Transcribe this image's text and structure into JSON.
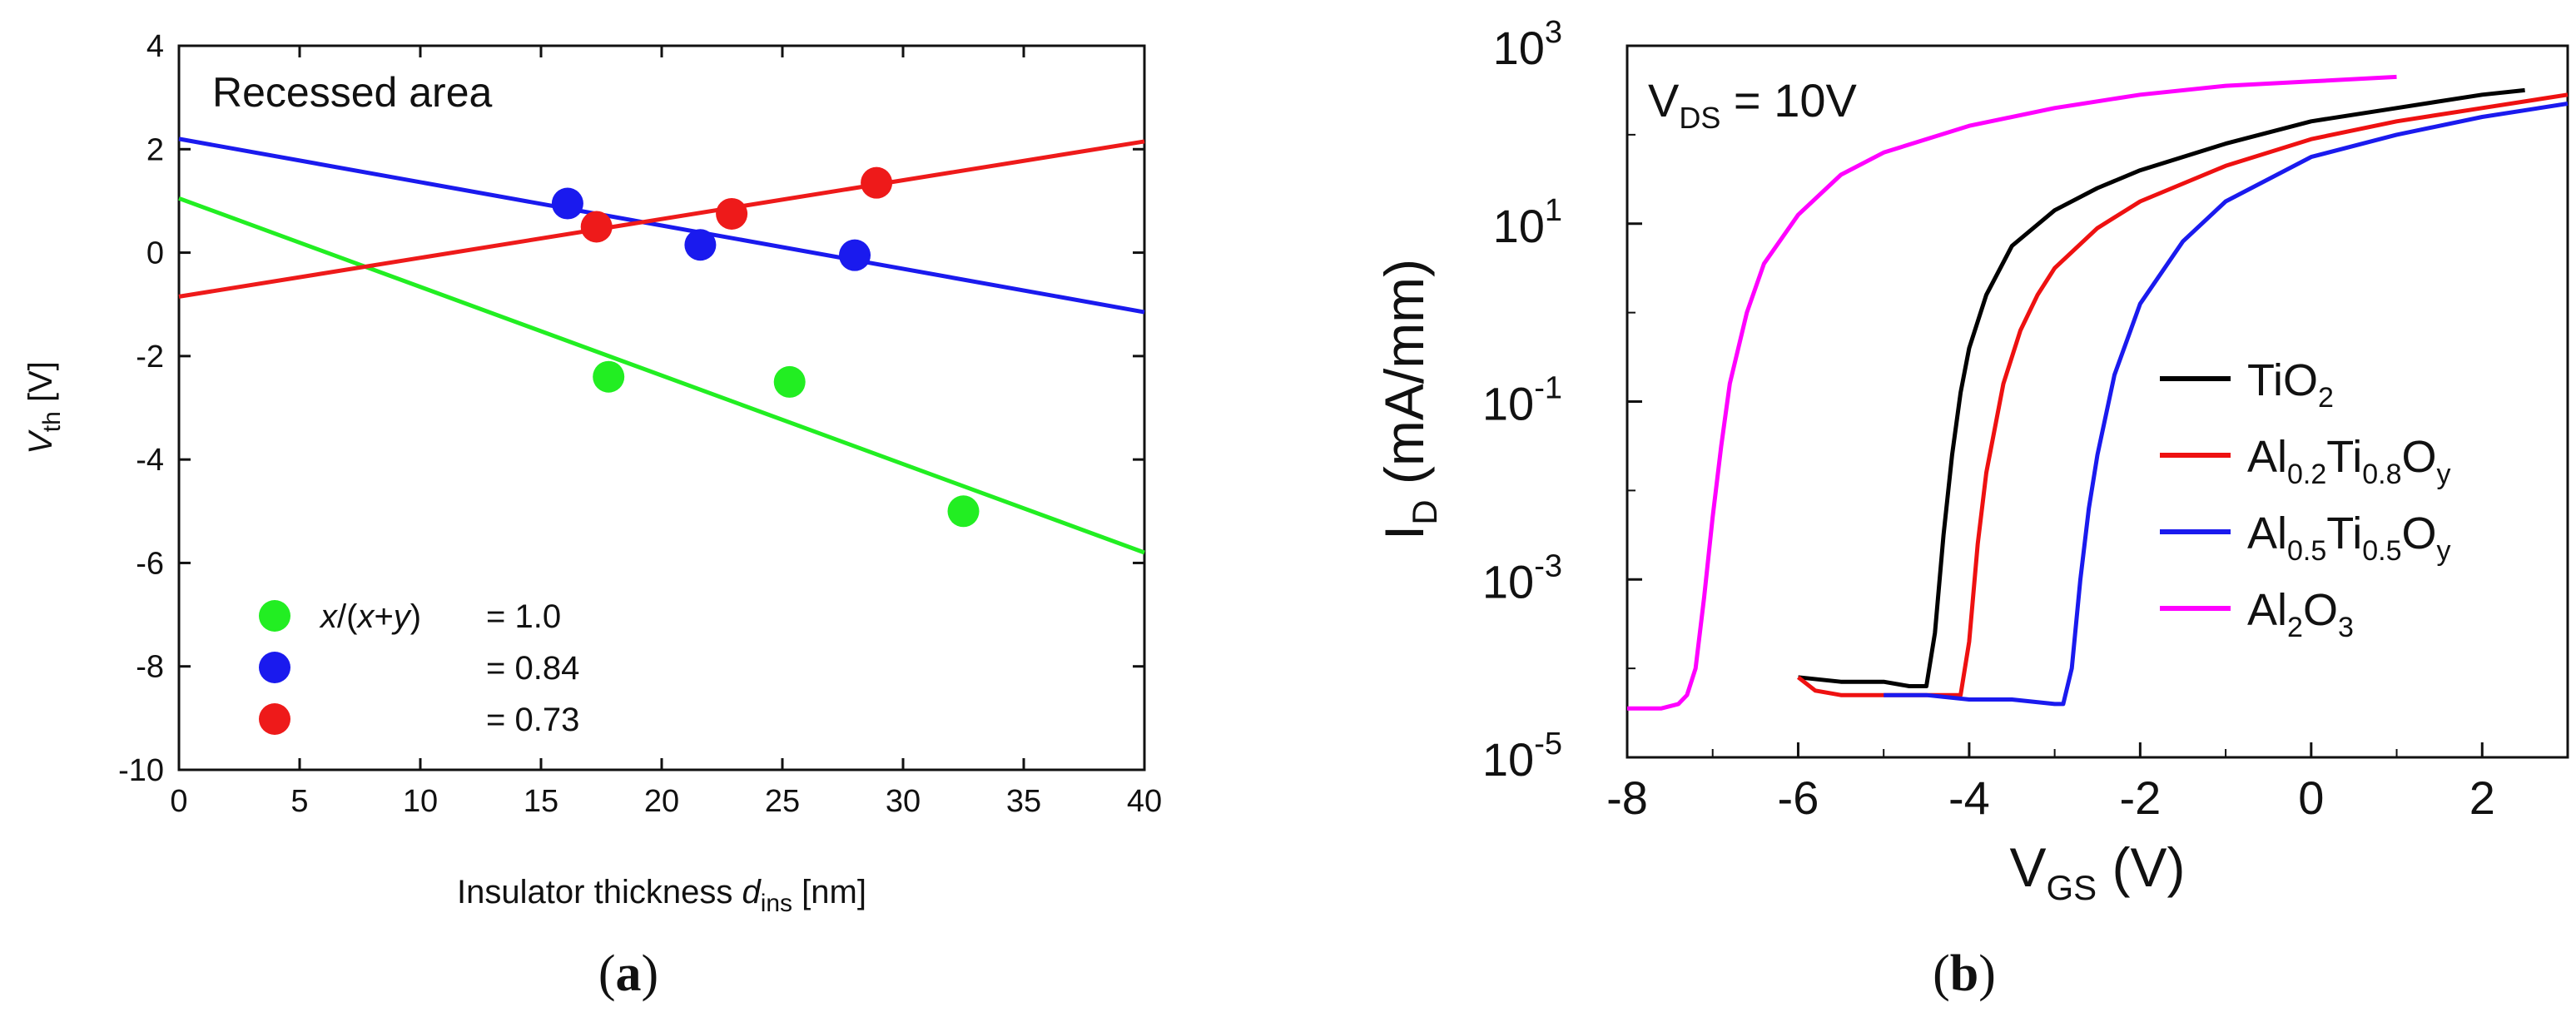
{
  "chart_data": [
    {
      "panel": "a",
      "type": "scatter",
      "title": "Recessed area",
      "xlabel": {
        "main": "Insulator thickness ",
        "italic": "d",
        "sub": "ins",
        "unit": " [nm]"
      },
      "ylabel": {
        "italic": "V",
        "sub": "th",
        "unit": " [V]"
      },
      "xlim": [
        0,
        40
      ],
      "ylim": [
        -10,
        4
      ],
      "xticks": [
        "0",
        "5",
        "10",
        "15",
        "20",
        "25",
        "30",
        "35",
        "40"
      ],
      "yticks": [
        "-10",
        "-8",
        "-6",
        "-4",
        "-2",
        "0",
        "2",
        "4"
      ],
      "legend_placement": "bottom-left",
      "series": [
        {
          "name": "x/(x+y) = 1.0",
          "legend_label": "= 1.0",
          "color": "#22ee22",
          "points": [
            [
              17.8,
              -2.4
            ],
            [
              25.3,
              -2.5
            ],
            [
              32.5,
              -5.0
            ]
          ],
          "fit": [
            [
              0,
              1.05
            ],
            [
              40,
              -5.8
            ]
          ]
        },
        {
          "name": "x/(x+y) = 0.84",
          "legend_label": "= 0.84",
          "color": "#1a1aee",
          "points": [
            [
              16.1,
              0.95
            ],
            [
              21.6,
              0.15
            ],
            [
              28.0,
              -0.05
            ]
          ],
          "fit": [
            [
              0,
              2.2
            ],
            [
              40,
              -1.15
            ]
          ]
        },
        {
          "name": "x/(x+y) = 0.73",
          "legend_label": "= 0.73",
          "color": "#ee1a1a",
          "points": [
            [
              17.3,
              0.5
            ],
            [
              22.9,
              0.75
            ],
            [
              28.9,
              1.35
            ]
          ],
          "fit": [
            [
              0,
              -0.85
            ],
            [
              40,
              2.15
            ]
          ]
        }
      ],
      "legend_prefix": {
        "italic_x": "x",
        "mid": "/(",
        "italic_x2": "x",
        "plus": "+",
        "italic_y": "y",
        "close": ")"
      }
    },
    {
      "panel": "b",
      "type": "line",
      "annotation": {
        "main": "V",
        "sub": "DS",
        "rest": " = 10V"
      },
      "xlabel": {
        "main": "V",
        "sub": "GS",
        "unit": " (V)"
      },
      "ylabel": {
        "main": "I",
        "sub": "D",
        "unit": " (mA/mm)"
      },
      "y_scale": "log",
      "xlim": [
        -8,
        3
      ],
      "ylim_log10": [
        -5,
        3
      ],
      "xticks": [
        "-8",
        "-6",
        "-4",
        "-2",
        "0",
        "2"
      ],
      "xtick_values": [
        -8,
        -6,
        -4,
        -2,
        0,
        2
      ],
      "yticks": [
        {
          "base": "10",
          "exp": "-5",
          "log": -5
        },
        {
          "base": "10",
          "exp": "-3",
          "log": -3
        },
        {
          "base": "10",
          "exp": "-1",
          "log": -1
        },
        {
          "base": "10",
          "exp": "1",
          "log": 1
        },
        {
          "base": "10",
          "exp": "3",
          "log": 3
        }
      ],
      "legend_placement": "bottom-right",
      "series": [
        {
          "legend": [
            {
              "t": "TiO"
            },
            {
              "t": "2",
              "s": 1
            }
          ],
          "color": "#000000",
          "x": [
            -6.0,
            -5.5,
            -5.0,
            -4.7,
            -4.5,
            -4.4,
            -4.3,
            -4.2,
            -4.1,
            -4.0,
            -3.8,
            -3.5,
            -3.0,
            -2.5,
            -2.0,
            -1.0,
            0.0,
            1.0,
            2.0,
            2.5
          ],
          "log10_y": [
            -4.1,
            -4.15,
            -4.15,
            -4.2,
            -4.2,
            -3.6,
            -2.5,
            -1.6,
            -0.9,
            -0.4,
            0.2,
            0.75,
            1.15,
            1.4,
            1.6,
            1.9,
            2.15,
            2.3,
            2.45,
            2.5
          ]
        },
        {
          "legend": [
            {
              "t": "Al"
            },
            {
              "t": "0.2",
              "s": 1
            },
            {
              "t": "Ti"
            },
            {
              "t": "0.8",
              "s": 1
            },
            {
              "t": "O"
            },
            {
              "t": "y",
              "s": 1
            }
          ],
          "color": "#ee1111",
          "x": [
            -6.0,
            -5.8,
            -5.5,
            -5.0,
            -4.5,
            -4.1,
            -4.0,
            -3.9,
            -3.8,
            -3.6,
            -3.4,
            -3.2,
            -3.0,
            -2.5,
            -2.0,
            -1.0,
            0.0,
            1.0,
            2.0,
            3.0
          ],
          "log10_y": [
            -4.1,
            -4.25,
            -4.3,
            -4.3,
            -4.3,
            -4.3,
            -3.7,
            -2.6,
            -1.8,
            -0.8,
            -0.2,
            0.2,
            0.5,
            0.95,
            1.25,
            1.65,
            1.95,
            2.15,
            2.3,
            2.45
          ]
        },
        {
          "legend": [
            {
              "t": "Al"
            },
            {
              "t": "0.5",
              "s": 1
            },
            {
              "t": "Ti"
            },
            {
              "t": "0.5",
              "s": 1
            },
            {
              "t": "O"
            },
            {
              "t": "y",
              "s": 1
            }
          ],
          "color": "#1a1aee",
          "x": [
            -5.0,
            -4.5,
            -4.0,
            -3.5,
            -3.0,
            -2.9,
            -2.8,
            -2.7,
            -2.6,
            -2.5,
            -2.3,
            -2.0,
            -1.5,
            -1.0,
            0.0,
            1.0,
            2.0,
            3.0
          ],
          "log10_y": [
            -4.3,
            -4.3,
            -4.35,
            -4.35,
            -4.4,
            -4.4,
            -4.0,
            -3.0,
            -2.2,
            -1.6,
            -0.7,
            0.1,
            0.8,
            1.25,
            1.75,
            2.0,
            2.2,
            2.35
          ]
        },
        {
          "legend": [
            {
              "t": "Al"
            },
            {
              "t": "2",
              "s": 1
            },
            {
              "t": "O"
            },
            {
              "t": "3",
              "s": 1
            }
          ],
          "color": "#ff00ff",
          "x": [
            -8.0,
            -7.6,
            -7.4,
            -7.3,
            -7.2,
            -7.1,
            -7.0,
            -6.9,
            -6.8,
            -6.6,
            -6.4,
            -6.0,
            -5.5,
            -5.0,
            -4.5,
            -4.0,
            -3.0,
            -2.0,
            -1.0,
            0.0,
            1.0
          ],
          "log10_y": [
            -4.45,
            -4.45,
            -4.4,
            -4.3,
            -4.0,
            -3.2,
            -2.3,
            -1.5,
            -0.8,
            0.0,
            0.55,
            1.1,
            1.55,
            1.8,
            1.95,
            2.1,
            2.3,
            2.45,
            2.55,
            2.6,
            2.65
          ]
        }
      ]
    }
  ],
  "captions": [
    {
      "open": "(",
      "letter": "a",
      "close": ")"
    },
    {
      "open": "(",
      "letter": "b",
      "close": ")"
    }
  ]
}
